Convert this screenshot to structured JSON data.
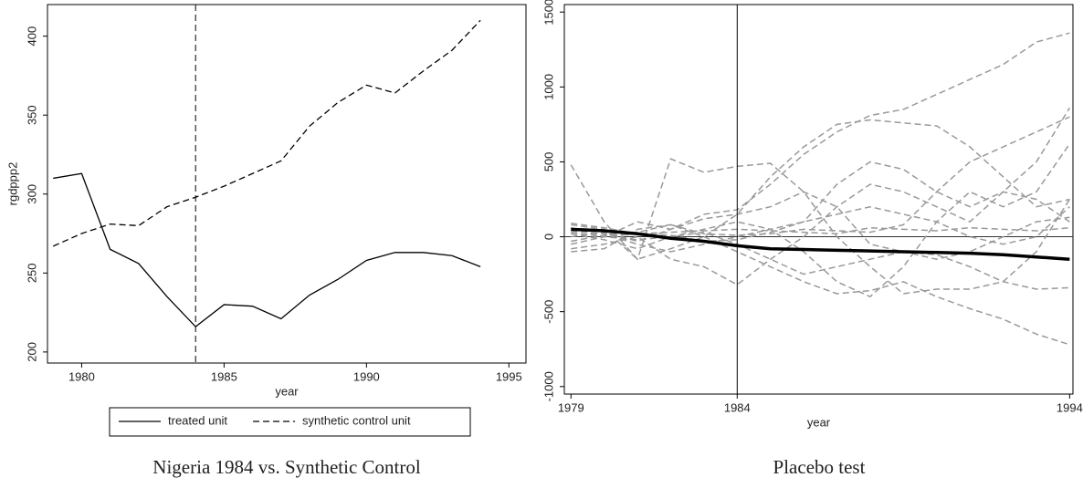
{
  "chart_data": [
    {
      "type": "line",
      "caption": "Nigeria 1984 vs. Synthetic Control",
      "xlabel": "year",
      "ylabel": "rgdppp2",
      "x": [
        1979,
        1980,
        1981,
        1982,
        1983,
        1984,
        1985,
        1986,
        1987,
        1988,
        1989,
        1990,
        1991,
        1992,
        1993,
        1994
      ],
      "series": [
        {
          "name": "treated unit",
          "color": "#000000",
          "style": "solid",
          "line_width": 1.3,
          "values": [
            310,
            313,
            265,
            256,
            235,
            216,
            230,
            229,
            221,
            236,
            246,
            258,
            263,
            263,
            261,
            254
          ]
        },
        {
          "name": "synthetic control unit",
          "color": "#000000",
          "style": "dashed",
          "line_width": 1.3,
          "values": [
            267,
            275,
            281,
            280,
            292,
            298,
            305,
            313,
            321,
            343,
            358,
            369,
            364,
            378,
            391,
            410
          ]
        }
      ],
      "xlim": [
        1978.8,
        1995.6
      ],
      "xticks": [
        1980,
        1985,
        1990,
        1995
      ],
      "ylim": [
        193,
        420
      ],
      "yticks": [
        200,
        250,
        300,
        350,
        400
      ],
      "vline": 1984,
      "vline_style": "dashed",
      "legend": "bottom"
    },
    {
      "type": "line",
      "caption": "Placebo test",
      "xlabel": "year",
      "x": [
        1979,
        1980,
        1981,
        1982,
        1983,
        1984,
        1985,
        1986,
        1987,
        1988,
        1989,
        1990,
        1991,
        1992,
        1993,
        1994
      ],
      "series": [
        {
          "color": "#999999",
          "style": "dashed",
          "line_width": 1.5,
          "values": [
            480,
            100,
            -150,
            520,
            430,
            470,
            490,
            300,
            0,
            -200,
            -380,
            -350,
            -350,
            -300,
            -100,
            250
          ]
        },
        {
          "color": "#999999",
          "style": "dashed",
          "line_width": 1.5,
          "values": [
            80,
            50,
            -150,
            -80,
            0,
            150,
            400,
            600,
            750,
            780,
            760,
            740,
            600,
            400,
            200,
            250
          ]
        },
        {
          "color": "#999999",
          "style": "dashed",
          "line_width": 1.5,
          "values": [
            -50,
            0,
            100,
            50,
            150,
            180,
            350,
            550,
            700,
            810,
            850,
            950,
            1050,
            1150,
            1300,
            1360
          ]
        },
        {
          "color": "#999999",
          "style": "dashed",
          "line_width": 1.5,
          "values": [
            -80,
            -50,
            0,
            -150,
            -200,
            -320,
            -150,
            0,
            200,
            350,
            300,
            200,
            100,
            300,
            500,
            860
          ]
        },
        {
          "color": "#999999",
          "style": "dashed",
          "line_width": 1.5,
          "values": [
            60,
            0,
            -20,
            0,
            50,
            100,
            50,
            -100,
            -300,
            -400,
            -200,
            100,
            300,
            200,
            300,
            620
          ]
        },
        {
          "color": "#999999",
          "style": "dashed",
          "line_width": 1.5,
          "values": [
            0,
            30,
            -30,
            50,
            120,
            150,
            200,
            300,
            200,
            -50,
            -100,
            -150,
            -100,
            0,
            100,
            130
          ]
        },
        {
          "color": "#999999",
          "style": "dashed",
          "line_width": 1.5,
          "values": [
            -100,
            -80,
            50,
            80,
            0,
            -100,
            -200,
            -300,
            -380,
            -360,
            -300,
            -400,
            -480,
            -550,
            -650,
            -720
          ]
        },
        {
          "color": "#999999",
          "style": "dashed",
          "line_width": 1.5,
          "values": [
            40,
            20,
            -50,
            -100,
            -50,
            0,
            50,
            100,
            150,
            200,
            150,
            100,
            0,
            -50,
            0,
            200
          ]
        },
        {
          "color": "#999999",
          "style": "dashed",
          "line_width": 1.5,
          "values": [
            20,
            -20,
            -80,
            0,
            30,
            -50,
            -150,
            -250,
            -200,
            -150,
            -100,
            -120,
            -200,
            -300,
            -350,
            -340
          ]
        },
        {
          "color": "#999999",
          "style": "dashed",
          "line_width": 1.5,
          "values": [
            -30,
            10,
            30,
            80,
            20,
            10,
            20,
            50,
            40,
            30,
            80,
            300,
            500,
            600,
            700,
            800
          ]
        },
        {
          "color": "#999999",
          "style": "dashed",
          "line_width": 1.5,
          "values": [
            90,
            60,
            20,
            10,
            -30,
            -20,
            30,
            100,
            350,
            500,
            450,
            300,
            200,
            300,
            250,
            100
          ]
        },
        {
          "color": "#999999",
          "style": "dashed",
          "line_width": 1.5,
          "values": [
            30,
            0,
            20,
            30,
            40,
            50,
            40,
            30,
            20,
            60,
            50,
            40,
            60,
            50,
            40,
            60
          ]
        },
        {
          "color": "#000000",
          "style": "solid",
          "line_width": 3.5,
          "values": [
            50,
            40,
            20,
            -10,
            -30,
            -60,
            -80,
            -85,
            -90,
            -95,
            -100,
            -105,
            -110,
            -120,
            -135,
            -150
          ]
        }
      ],
      "xlim": [
        1978.8,
        1994.1
      ],
      "xticks": [
        1979,
        1984,
        1994
      ],
      "ylim": [
        -1050,
        1550
      ],
      "yticks": [
        -1000,
        -500,
        0,
        500,
        1000,
        1500
      ],
      "vline": 1984,
      "vline_style": "solid",
      "hline": 0
    }
  ]
}
